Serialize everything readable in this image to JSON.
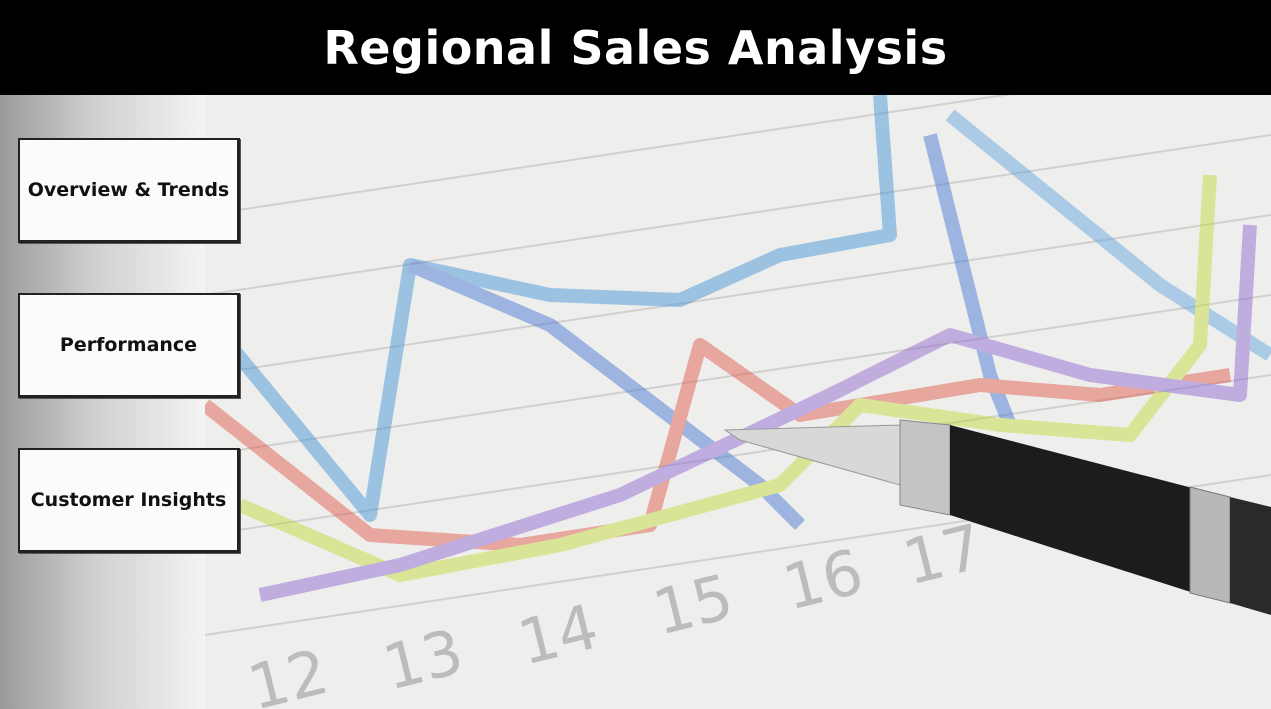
{
  "header": {
    "title": "Regional Sales Analysis"
  },
  "nav": {
    "buttons": [
      "Overview & Trends",
      "Performance",
      "Customer Insights"
    ]
  },
  "background": {
    "axis_labels": [
      "12",
      "13",
      "14",
      "15",
      "16",
      "17"
    ]
  }
}
